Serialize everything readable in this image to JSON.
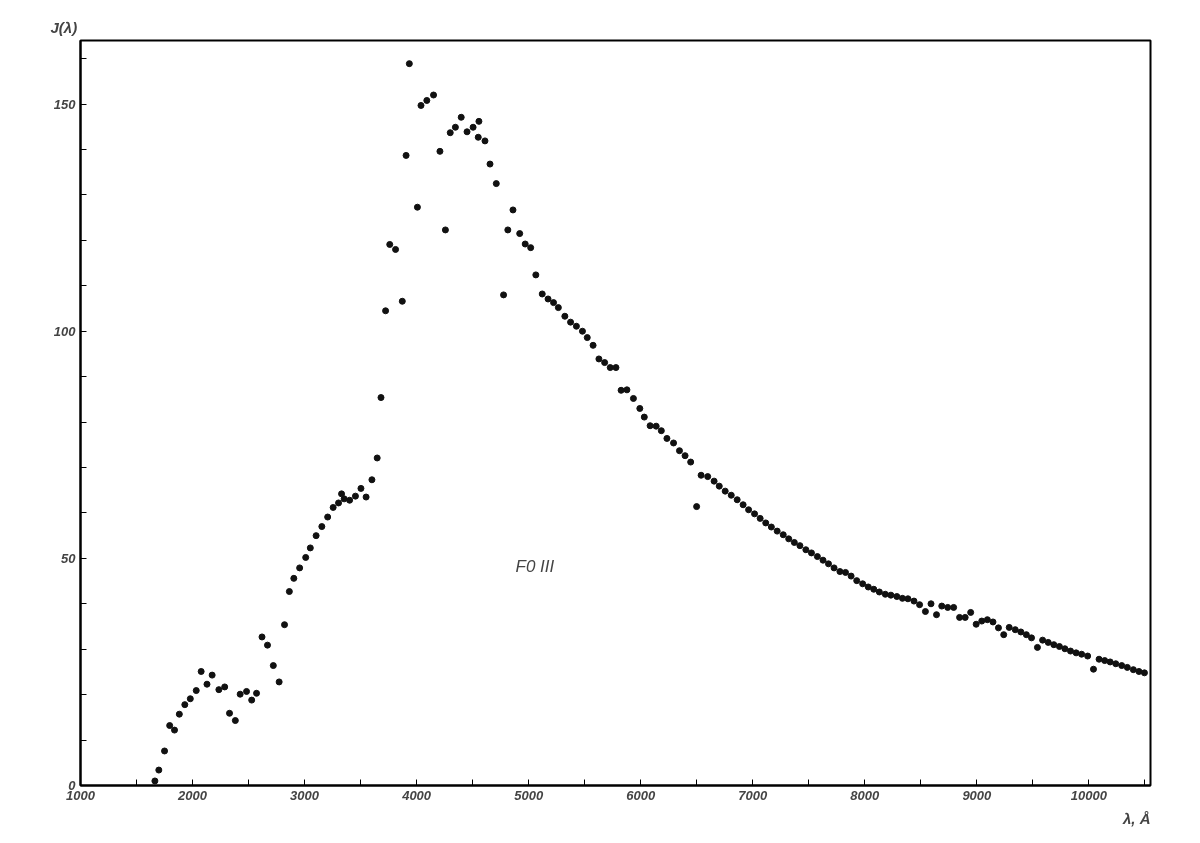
{
  "chart_data": {
    "type": "scatter",
    "xlabel": "λ, Å",
    "ylabel": "J(λ)",
    "annotations": [
      "F0 III"
    ],
    "xlim": [
      1000,
      10550
    ],
    "ylim": [
      0,
      164
    ],
    "xticks": [
      1000,
      {
        "value": 1500,
        "label": null
      },
      2000,
      {
        "value": 2500,
        "label": null
      },
      3000,
      {
        "value": 3500,
        "label": null
      },
      4000,
      {
        "value": 4500,
        "label": null
      },
      5000,
      {
        "value": 5500,
        "label": null
      },
      6000,
      {
        "value": 6500,
        "label": null
      },
      7000,
      {
        "value": 7500,
        "label": null
      },
      8000,
      {
        "value": 8500,
        "label": null
      },
      9000,
      {
        "value": 9500,
        "label": null
      },
      10000,
      {
        "value": 10500,
        "label": null
      }
    ],
    "yticks": [
      0,
      {
        "value": 10,
        "label": null
      },
      {
        "value": 20,
        "label": null
      },
      {
        "value": 30,
        "label": null
      },
      {
        "value": 40,
        "label": null
      },
      50,
      {
        "value": 60,
        "label": null
      },
      {
        "value": 70,
        "label": null
      },
      {
        "value": 80,
        "label": null
      },
      {
        "value": 90,
        "label": null
      },
      100,
      {
        "value": 110,
        "label": null
      },
      {
        "value": 120,
        "label": null
      },
      {
        "value": 130,
        "label": null
      },
      {
        "value": 140,
        "label": null
      },
      150,
      {
        "value": 160,
        "label": null
      }
    ],
    "grid": false,
    "marker": "circle",
    "series": [
      {
        "color": "#111111",
        "x": [
          1664,
          1699,
          1750,
          1796,
          1839,
          1882,
          1931,
          1980,
          2033,
          2077,
          2129,
          2175,
          2235,
          2287,
          2330,
          2382,
          2425,
          2482,
          2528,
          2571,
          2620,
          2669,
          2721,
          2773,
          2821,
          2864,
          2904,
          2956,
          3010,
          3051,
          3103,
          3154,
          3206,
          3255,
          3303,
          3330,
          3353,
          3402,
          3454,
          3503,
          3549,
          3601,
          3648,
          3682,
          3723,
          3760,
          3812,
          3872,
          3906,
          3935,
          4007,
          4039,
          4091,
          4151,
          4208,
          4257,
          4300,
          4346,
          4398,
          4450,
          4504,
          4550,
          4556,
          4610,
          4655,
          4711,
          4776,
          4814,
          4860,
          4920,
          4969,
          5018,
          5064,
          5121,
          5173,
          5222,
          5265,
          5323,
          5374,
          5426,
          5480,
          5523,
          5575,
          5627,
          5678,
          5728,
          5779,
          5825,
          5877,
          5935,
          5992,
          6032,
          6084,
          6138,
          6184,
          6234,
          6293,
          6346,
          6396,
          6446,
          6499,
          6539,
          6598,
          6655,
          6701,
          6754,
          6808,
          6861,
          6914,
          6963,
          7016,
          7066,
          7116,
          7166,
          7218,
          7272,
          7321,
          7371,
          7421,
          7474,
          7524,
          7577,
          7627,
          7676,
          7726,
          7778,
          7828,
          7878,
          7928,
          7981,
          8031,
          8080,
          8130,
          8183,
          8233,
          8286,
          8336,
          8385,
          8439,
          8489,
          8541,
          8591,
          8640,
          8687,
          8740,
          8793,
          8846,
          8896,
          8945,
          8994,
          9044,
          9094,
          9144,
          9193,
          9240,
          9289,
          9343,
          9393,
          9442,
          9488,
          9541,
          9587,
          9637,
          9687,
          9737,
          9786,
          9836,
          9886,
          9935,
          9989,
          10041,
          10091,
          10141,
          10190,
          10240,
          10293,
          10343,
          10397,
          10447,
          10496
        ],
        "values": [
          1.0,
          3.4,
          7.6,
          13.2,
          12.2,
          15.7,
          17.8,
          19.1,
          20.9,
          25.1,
          22.3,
          24.3,
          21.1,
          21.7,
          15.9,
          14.3,
          20.1,
          20.7,
          18.8,
          20.3,
          32.7,
          30.9,
          26.4,
          22.8,
          35.4,
          42.7,
          45.6,
          47.9,
          50.2,
          52.3,
          55.0,
          57.0,
          59.1,
          61.2,
          62.2,
          64.2,
          63.1,
          62.8,
          63.7,
          65.4,
          63.5,
          67.3,
          72.1,
          85.4,
          104.5,
          119.1,
          118.0,
          106.6,
          138.7,
          158.9,
          127.3,
          149.7,
          150.8,
          152.0,
          139.6,
          122.3,
          143.7,
          144.9,
          147.1,
          143.9,
          144.9,
          142.7,
          146.2,
          141.9,
          136.8,
          132.5,
          108.0,
          122.3,
          126.7,
          121.5,
          119.2,
          118.4,
          112.4,
          108.2,
          107.1,
          106.3,
          105.2,
          103.3,
          102.0,
          101.1,
          100.0,
          98.6,
          96.9,
          93.9,
          93.1,
          92.0,
          92.0,
          87.0,
          87.1,
          85.2,
          83.0,
          81.1,
          79.2,
          79.1,
          78.1,
          76.4,
          75.4,
          73.7,
          72.6,
          71.2,
          61.4,
          68.3,
          68.0,
          67.0,
          65.9,
          64.8,
          63.9,
          62.9,
          61.8,
          60.7,
          59.8,
          58.8,
          57.8,
          56.9,
          56.0,
          55.2,
          54.3,
          53.5,
          52.8,
          51.9,
          51.2,
          50.4,
          49.6,
          48.8,
          47.9,
          47.1,
          46.9,
          46.1,
          45.1,
          44.4,
          43.7,
          43.2,
          42.6,
          42.1,
          41.9,
          41.6,
          41.2,
          41.1,
          40.6,
          39.8,
          38.3,
          40.0,
          37.6,
          39.5,
          39.2,
          39.2,
          37.0,
          37.0,
          38.1,
          35.5,
          36.2,
          36.5,
          36.0,
          34.7,
          33.2,
          34.8,
          34.3,
          33.8,
          33.2,
          32.5,
          30.4,
          32.0,
          31.5,
          31.0,
          30.6,
          30.1,
          29.6,
          29.2,
          28.9,
          28.5,
          25.6,
          27.8,
          27.5,
          27.2,
          26.8,
          26.4,
          26.0,
          25.5,
          25.1,
          24.8
        ]
      }
    ]
  }
}
